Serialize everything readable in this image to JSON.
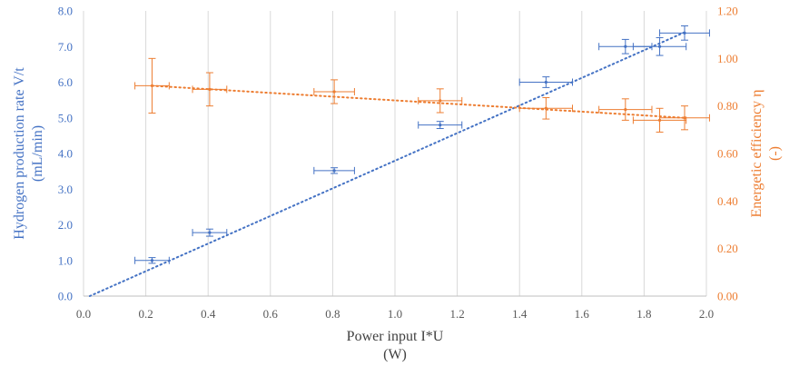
{
  "chart_data": {
    "type": "scatter",
    "x": {
      "label": [
        "Power input I*U",
        "(W)"
      ],
      "ticks": [
        "0.0",
        "0.2",
        "0.4",
        "0.6",
        "0.8",
        "1.0",
        "1.2",
        "1.4",
        "1.6",
        "1.8",
        "2.0"
      ],
      "range": [
        0,
        2.0
      ]
    },
    "y_left": {
      "label": [
        "Hydrogen production rate V/t",
        "(mL/min)"
      ],
      "ticks": [
        "0.0",
        "1.0",
        "2.0",
        "3.0",
        "4.0",
        "5.0",
        "6.0",
        "7.0",
        "8.0"
      ],
      "range": [
        0,
        8.0
      ],
      "color": "#4472C4"
    },
    "y_right": {
      "label": [
        "Energetic efficiency η",
        "(-)"
      ],
      "ticks": [
        "0.00",
        "0.20",
        "0.40",
        "0.60",
        "0.80",
        "1.00",
        "1.20"
      ],
      "range": [
        0,
        1.2
      ],
      "color": "#ED7D31"
    },
    "grid": "vertical",
    "series": [
      {
        "axis": "left",
        "color": "#4472C4",
        "points": [
          {
            "x": 0.22,
            "y": 1.0,
            "xerr": 0.055,
            "yerr": 0.08
          },
          {
            "x": 0.405,
            "y": 1.78,
            "xerr": 0.055,
            "yerr": 0.1
          },
          {
            "x": 0.805,
            "y": 3.52,
            "xerr": 0.065,
            "yerr": 0.08
          },
          {
            "x": 1.145,
            "y": 4.8,
            "xerr": 0.07,
            "yerr": 0.1
          },
          {
            "x": 1.485,
            "y": 6.0,
            "xerr": 0.085,
            "yerr": 0.15
          },
          {
            "x": 1.74,
            "y": 7.0,
            "xerr": 0.085,
            "yerr": 0.2
          },
          {
            "x": 1.85,
            "y": 7.0,
            "xerr": 0.085,
            "yerr": 0.25
          },
          {
            "x": 1.93,
            "y": 7.38,
            "xerr": 0.08,
            "yerr": 0.2
          }
        ],
        "trendline": {
          "x0": 0.02,
          "y0": 0.0,
          "x1": 1.93,
          "y1": 7.4
        }
      },
      {
        "axis": "right",
        "color": "#ED7D31",
        "points": [
          {
            "x": 0.22,
            "y": 0.885,
            "xerr": 0.055,
            "yerr": 0.115
          },
          {
            "x": 0.405,
            "y": 0.87,
            "xerr": 0.055,
            "yerr": 0.07
          },
          {
            "x": 0.805,
            "y": 0.86,
            "xerr": 0.065,
            "yerr": 0.05
          },
          {
            "x": 1.145,
            "y": 0.822,
            "xerr": 0.07,
            "yerr": 0.05
          },
          {
            "x": 1.485,
            "y": 0.79,
            "xerr": 0.085,
            "yerr": 0.045
          },
          {
            "x": 1.74,
            "y": 0.785,
            "xerr": 0.085,
            "yerr": 0.045
          },
          {
            "x": 1.85,
            "y": 0.74,
            "xerr": 0.085,
            "yerr": 0.05
          },
          {
            "x": 1.93,
            "y": 0.75,
            "xerr": 0.08,
            "yerr": 0.05
          }
        ],
        "trendline": {
          "x0": 0.22,
          "y0": 0.885,
          "x1": 1.93,
          "y1": 0.75
        }
      }
    ]
  }
}
